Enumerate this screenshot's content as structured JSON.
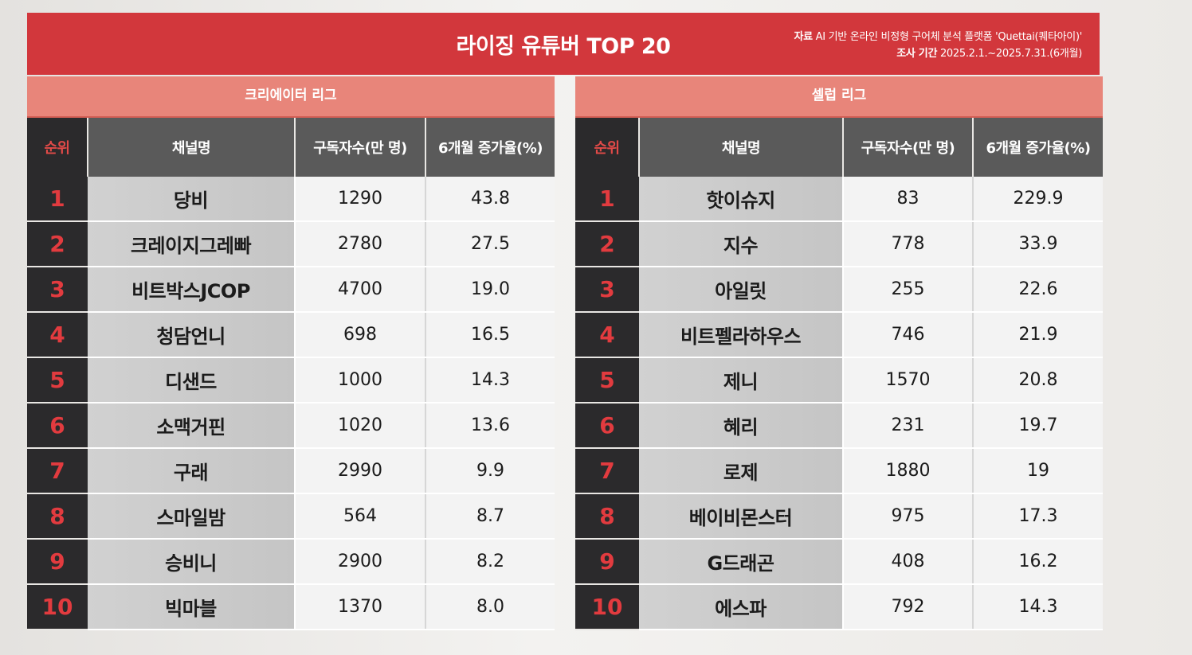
{
  "banner": {
    "title": "라이징 유튜버 TOP 20",
    "source_label": "자료",
    "source_text": "AI 기반 온라인 비정형 구어체 분석 플랫폼 'Quettai(퀘타아이)'",
    "period_label": "조사 기간",
    "period_text": "2025.2.1.~2025.7.31.(6개월)"
  },
  "creator_league": {
    "title": "크리에이터 리그",
    "headers": [
      "순위",
      "채널명",
      "구독자수(만 명)",
      "6개월 증가율(%)"
    ],
    "rows": [
      {
        "rank": "1",
        "name": "당비",
        "subs": "1290",
        "growth": "43.8"
      },
      {
        "rank": "2",
        "name": "크레이지그레빠",
        "subs": "2780",
        "growth": "27.5"
      },
      {
        "rank": "3",
        "name": "비트박스JCOP",
        "subs": "4700",
        "growth": "19.0"
      },
      {
        "rank": "4",
        "name": "청담언니",
        "subs": "698",
        "growth": "16.5"
      },
      {
        "rank": "5",
        "name": "디샌드",
        "subs": "1000",
        "growth": "14.3"
      },
      {
        "rank": "6",
        "name": "소맥거핀",
        "subs": "1020",
        "growth": "13.6"
      },
      {
        "rank": "7",
        "name": "구래",
        "subs": "2990",
        "growth": "9.9"
      },
      {
        "rank": "8",
        "name": "스마일밤",
        "subs": "564",
        "growth": "8.7"
      },
      {
        "rank": "9",
        "name": "승비니",
        "subs": "2900",
        "growth": "8.2"
      },
      {
        "rank": "10",
        "name": "빅마블",
        "subs": "1370",
        "growth": "8.0"
      }
    ]
  },
  "celeb_league": {
    "title": "셀럽 리그",
    "headers": [
      "순위",
      "채널명",
      "구독자수(만 명)",
      "6개월 증가율(%)"
    ],
    "rows": [
      {
        "rank": "1",
        "name": "핫이슈지",
        "subs": "83",
        "growth": "229.9"
      },
      {
        "rank": "2",
        "name": "지수",
        "subs": "778",
        "growth": "33.9"
      },
      {
        "rank": "3",
        "name": "아일릿",
        "subs": "255",
        "growth": "22.6"
      },
      {
        "rank": "4",
        "name": "비트펠라하우스",
        "subs": "746",
        "growth": "21.9"
      },
      {
        "rank": "5",
        "name": "제니",
        "subs": "1570",
        "growth": "20.8"
      },
      {
        "rank": "6",
        "name": "혜리",
        "subs": "231",
        "growth": "19.7"
      },
      {
        "rank": "7",
        "name": "로제",
        "subs": "1880",
        "growth": "19"
      },
      {
        "rank": "8",
        "name": "베이비몬스터",
        "subs": "975",
        "growth": "17.3"
      },
      {
        "rank": "9",
        "name": "G드래곤",
        "subs": "408",
        "growth": "16.2"
      },
      {
        "rank": "10",
        "name": "에스파",
        "subs": "792",
        "growth": "14.3"
      }
    ]
  }
}
